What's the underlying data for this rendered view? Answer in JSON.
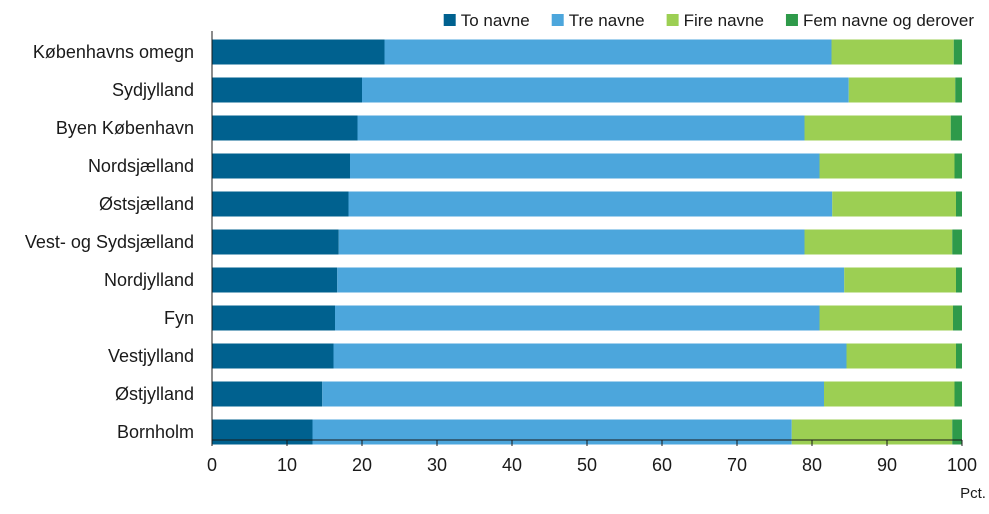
{
  "chart_data": {
    "type": "bar",
    "orientation": "horizontal",
    "stacked": true,
    "categories": [
      "Københavns omegn",
      "Sydjylland",
      "Byen København",
      "Nordsjælland",
      "Østsjælland",
      "Vest- og Sydsjælland",
      "Nordjylland",
      "Fyn",
      "Vestjylland",
      "Østjylland",
      "Bornholm"
    ],
    "series": [
      {
        "name": "To navne",
        "color": "#00618f",
        "values": [
          23.0,
          20.0,
          19.4,
          18.4,
          18.2,
          16.9,
          16.7,
          16.4,
          16.2,
          14.7,
          13.4
        ]
      },
      {
        "name": "Tre navne",
        "color": "#4ca6dc",
        "values": [
          59.6,
          64.9,
          59.6,
          62.6,
          64.5,
          62.1,
          67.6,
          64.6,
          68.4,
          66.9,
          63.9
        ]
      },
      {
        "name": "Fire navne",
        "color": "#9ccf53",
        "values": [
          16.3,
          14.2,
          19.5,
          18.0,
          16.5,
          19.7,
          14.9,
          17.8,
          14.6,
          17.4,
          21.4
        ]
      },
      {
        "name": "Fem navne og derover",
        "color": "#2e9a4a",
        "values": [
          1.1,
          0.9,
          1.5,
          1.0,
          0.8,
          1.3,
          0.8,
          1.2,
          0.8,
          1.0,
          1.3
        ]
      }
    ],
    "xlim": [
      0,
      100
    ],
    "xticks": [
      0,
      10,
      20,
      30,
      40,
      50,
      60,
      70,
      80,
      90,
      100
    ],
    "xlabel": "Pct.",
    "ylabel": "",
    "title": "",
    "grid": false,
    "legend_position": "top-right"
  }
}
